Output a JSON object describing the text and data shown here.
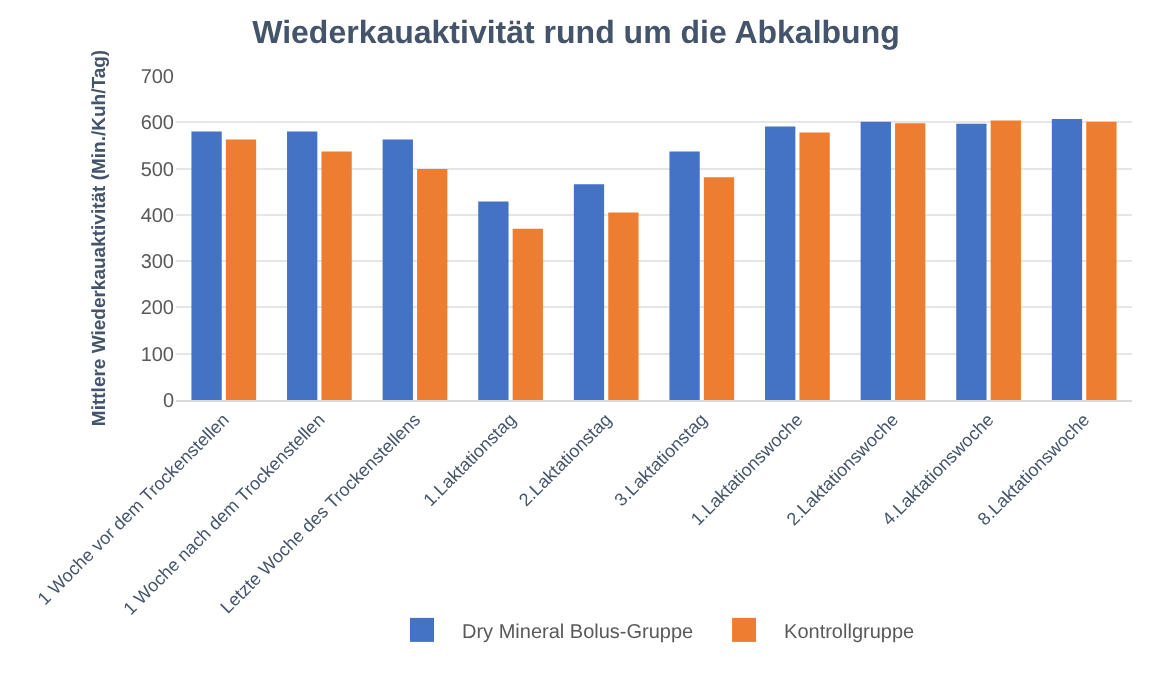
{
  "chart_data": {
    "type": "bar",
    "title": "Wiederkauaktivität rund um die Abkalbung",
    "ylabel": "Mittlere Wiederkauaktivität (Min./Kuh/Tag)",
    "categories": [
      "1 Woche vor dem Trockenstellen",
      "1 Woche nach dem Trockenstellen",
      "Letzte Woche des Trockenstellens",
      "1.Laktationstag",
      "2.Laktationstag",
      "3.Laktationstag",
      "1.Laktationswoche",
      "2.Laktationswoche",
      "4.Laktationswoche",
      "8.Laktationswoche"
    ],
    "series": [
      {
        "name": "Dry Mineral Bolus-Gruppe",
        "color": "#4472c4",
        "values": [
          580,
          580,
          563,
          429,
          466,
          537,
          591,
          601,
          597,
          607
        ]
      },
      {
        "name": "Kontrollgruppe",
        "color": "#ed7d31",
        "values": [
          563,
          537,
          499,
          370,
          405,
          481,
          578,
          598,
          604,
          601
        ]
      }
    ],
    "ylim": [
      0,
      700
    ],
    "yticks": [
      0,
      100,
      200,
      300,
      400,
      500,
      600,
      700
    ],
    "grid": "y",
    "legend": "bottom"
  }
}
